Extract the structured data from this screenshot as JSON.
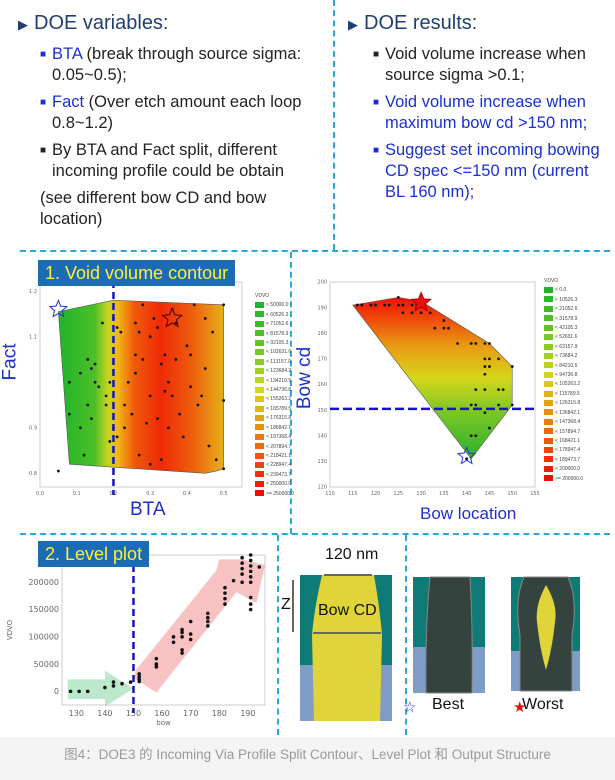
{
  "left_panel": {
    "heading": "DOE variables:",
    "bullets": [
      {
        "key": "BTA",
        "text": " (break through source sigma: 0.05~0.5);"
      },
      {
        "key": "Fact",
        "text": " (Over etch amount each loop 0.8~1.2)"
      },
      {
        "key": "",
        "text": "By BTA and Fact split, different incoming profile could be obtain"
      }
    ],
    "note": "(see different bow CD and bow location)"
  },
  "right_panel": {
    "heading": "DOE results:",
    "bullets": [
      "Void volume increase when source sigma >0.1;",
      "Void volume increase when maximum bow cd >150 nm;",
      "Suggest set incoming bowing CD spec <=150 nm (current BL 160 nm);"
    ]
  },
  "structure": {
    "width_label": "120 nm",
    "z_label": "Z",
    "bow_cd_label": "Bow CD",
    "best_label": "Best",
    "worst_label": "Worst"
  },
  "caption": "图4：DOE3 的 Incoming Via Profile Split Contour、Level Plot 和 Output Structure",
  "colors": {
    "accent_blue": "#1a2fd0",
    "title_box": "#1c6cb4",
    "title_text": "#ffef3a",
    "divider": "#29a8e0"
  },
  "chart_data": [
    {
      "type": "contour",
      "title": "1. Void volume contour",
      "xlabel": "BTA",
      "ylabel": "Fact",
      "xlim": [
        0,
        0.55
      ],
      "ylim": [
        0.77,
        1.22
      ],
      "xticks": [
        "0.0",
        "0.1",
        "0.2",
        "0.3",
        "0.4",
        "0.5"
      ],
      "yticks": [
        "0.8",
        "0.9",
        "1.1",
        "1.2"
      ],
      "threshold": {
        "axis": "x",
        "value": 0.2
      },
      "best": [
        0.05,
        1.16
      ],
      "worst": [
        0.36,
        1.14
      ],
      "region": [
        [
          0.05,
          1.155
        ],
        [
          0.2,
          1.18
        ],
        [
          0.5,
          1.17
        ],
        [
          0.5,
          0.81
        ],
        [
          0.48,
          0.805
        ],
        [
          0.45,
          0.8
        ],
        [
          0.08,
          0.82
        ]
      ],
      "legend_title": "VDVO",
      "legend": [
        "< 50000.0",
        "< 60526.3",
        "< 71052.6",
        "< 81578.9",
        "< 92105.3",
        "< 102631.6",
        "< 113157.9",
        "< 123684.2",
        "< 134210.5",
        "< 144736.8",
        "< 155263.2",
        "< 165789.5",
        "< 176315.8",
        "< 186842.1",
        "< 197368.4",
        "< 207894.7",
        "< 218421.1",
        "< 228947.4",
        "< 239473.7",
        "< 250000.0",
        ">= 250000.0"
      ],
      "points": [
        [
          0.05,
          0.805
        ],
        [
          0.08,
          1.0
        ],
        [
          0.08,
          0.93
        ],
        [
          0.11,
          0.9
        ],
        [
          0.11,
          1.02
        ],
        [
          0.12,
          0.84
        ],
        [
          0.13,
          1.05
        ],
        [
          0.13,
          0.95
        ],
        [
          0.14,
          1.03
        ],
        [
          0.14,
          0.92
        ],
        [
          0.15,
          1.0
        ],
        [
          0.15,
          1.04
        ],
        [
          0.16,
          0.99
        ],
        [
          0.17,
          1.13
        ],
        [
          0.18,
          0.97
        ],
        [
          0.18,
          0.95
        ],
        [
          0.19,
          1.0
        ],
        [
          0.19,
          0.87
        ],
        [
          0.2,
          0.9
        ],
        [
          0.2,
          1.14
        ],
        [
          0.21,
          1.12
        ],
        [
          0.21,
          0.88
        ],
        [
          0.22,
          1.11
        ],
        [
          0.23,
          0.95
        ],
        [
          0.23,
          0.9
        ],
        [
          0.24,
          1.0
        ],
        [
          0.25,
          0.93
        ],
        [
          0.26,
          1.13
        ],
        [
          0.26,
          1.06
        ],
        [
          0.26,
          1.02
        ],
        [
          0.27,
          1.11
        ],
        [
          0.27,
          0.84
        ],
        [
          0.28,
          1.17
        ],
        [
          0.28,
          1.05
        ],
        [
          0.29,
          0.91
        ],
        [
          0.3,
          1.1
        ],
        [
          0.3,
          0.97
        ],
        [
          0.3,
          0.82
        ],
        [
          0.31,
          1.14
        ],
        [
          0.32,
          1.12
        ],
        [
          0.32,
          0.92
        ],
        [
          0.33,
          1.04
        ],
        [
          0.33,
          0.83
        ],
        [
          0.34,
          0.98
        ],
        [
          0.34,
          1.06
        ],
        [
          0.35,
          1.0
        ],
        [
          0.35,
          0.9
        ],
        [
          0.36,
          1.16
        ],
        [
          0.36,
          0.97
        ],
        [
          0.37,
          1.13
        ],
        [
          0.37,
          1.05
        ],
        [
          0.38,
          0.93
        ],
        [
          0.39,
          0.88
        ],
        [
          0.4,
          1.08
        ],
        [
          0.41,
          1.06
        ],
        [
          0.41,
          0.99
        ],
        [
          0.42,
          1.17
        ],
        [
          0.43,
          0.95
        ],
        [
          0.44,
          0.97
        ],
        [
          0.45,
          1.14
        ],
        [
          0.45,
          1.03
        ],
        [
          0.46,
          0.86
        ],
        [
          0.47,
          1.11
        ],
        [
          0.48,
          0.83
        ],
        [
          0.5,
          0.96
        ],
        [
          0.5,
          1.17
        ],
        [
          0.5,
          0.81
        ]
      ]
    },
    {
      "type": "contour",
      "title": "",
      "xlabel": "Bow location",
      "ylabel": "Bow cd",
      "xlim": [
        110,
        155
      ],
      "ylim": [
        120,
        200
      ],
      "xticks": [
        "110",
        "115",
        "120",
        "125",
        "130",
        "135",
        "140",
        "145",
        "150",
        "155"
      ],
      "yticks": [
        "120",
        "130",
        "140",
        "150",
        "160",
        "170",
        "180",
        "190",
        "200"
      ],
      "threshold": {
        "axis": "y",
        "value": 150.5
      },
      "best": [
        140,
        132
      ],
      "worst": [
        130,
        192
      ],
      "region": [
        [
          115,
          191
        ],
        [
          125,
          194
        ],
        [
          130,
          192.5
        ],
        [
          145,
          176
        ],
        [
          150,
          167
        ],
        [
          150,
          152
        ],
        [
          141,
          131
        ]
      ],
      "legend_title": "VDVO",
      "legend": [
        "< 0.0",
        "< 10526.3",
        "< 21052.6",
        "< 31578.9",
        "< 42105.3",
        "< 52631.6",
        "< 63157.9",
        "< 73684.2",
        "< 84210.5",
        "< 94736.8",
        "< 105263.2",
        "< 115789.5",
        "< 126315.8",
        "< 136842.1",
        "< 147368.4",
        "< 157894.7",
        "< 168421.1",
        "< 178947.4",
        "< 189473.7",
        "< 200000.0",
        ">= 200000.0"
      ],
      "points": [
        [
          125,
          194
        ],
        [
          116,
          191
        ],
        [
          117,
          191
        ],
        [
          119,
          191
        ],
        [
          120,
          191
        ],
        [
          122,
          191
        ],
        [
          123,
          191
        ],
        [
          125,
          191
        ],
        [
          126,
          191
        ],
        [
          128,
          191
        ],
        [
          129,
          191
        ],
        [
          130,
          191
        ],
        [
          126,
          188
        ],
        [
          128,
          188
        ],
        [
          130,
          188
        ],
        [
          132,
          188
        ],
        [
          135,
          185
        ],
        [
          133,
          182
        ],
        [
          135,
          182
        ],
        [
          136,
          182
        ],
        [
          138,
          176
        ],
        [
          141,
          176
        ],
        [
          142,
          176
        ],
        [
          144,
          176
        ],
        [
          145,
          176
        ],
        [
          144,
          170
        ],
        [
          145,
          170
        ],
        [
          147,
          170
        ],
        [
          144,
          167
        ],
        [
          145,
          167
        ],
        [
          144,
          164
        ],
        [
          150,
          167
        ],
        [
          142,
          158
        ],
        [
          144,
          158
        ],
        [
          147,
          158
        ],
        [
          148,
          158
        ],
        [
          141,
          152
        ],
        [
          142,
          152
        ],
        [
          147,
          152
        ],
        [
          150,
          152
        ],
        [
          144,
          149
        ],
        [
          145,
          143
        ],
        [
          141,
          140
        ],
        [
          142,
          140
        ],
        [
          140,
          131
        ]
      ]
    },
    {
      "type": "scatter",
      "title": "2. Level plot",
      "xlabel": "bow",
      "ylabel": "VDVO",
      "xlim": [
        125,
        196
      ],
      "ylim": [
        -25000,
        250000
      ],
      "xticks": [
        "130",
        "140",
        "150",
        "160",
        "170",
        "180",
        "190"
      ],
      "yticks": [
        "0",
        "50000",
        "100000",
        "150000",
        "200000"
      ],
      "threshold": {
        "axis": "x",
        "value": 150
      },
      "points": [
        [
          128,
          0
        ],
        [
          131,
          0
        ],
        [
          134,
          0
        ],
        [
          140,
          7000
        ],
        [
          143,
          10000
        ],
        [
          143,
          17000
        ],
        [
          146,
          14000
        ],
        [
          149,
          17000
        ],
        [
          152,
          18000
        ],
        [
          152,
          22000
        ],
        [
          152,
          27000
        ],
        [
          152,
          32000
        ],
        [
          158,
          45000
        ],
        [
          158,
          50000
        ],
        [
          158,
          60000
        ],
        [
          164,
          90000
        ],
        [
          164,
          100000
        ],
        [
          167,
          70000
        ],
        [
          167,
          76000
        ],
        [
          167,
          100000
        ],
        [
          167,
          108000
        ],
        [
          167,
          113000
        ],
        [
          170,
          95000
        ],
        [
          170,
          105000
        ],
        [
          170,
          128000
        ],
        [
          176,
          120000
        ],
        [
          176,
          128000
        ],
        [
          176,
          135000
        ],
        [
          176,
          143000
        ],
        [
          182,
          160000
        ],
        [
          182,
          170000
        ],
        [
          182,
          180000
        ],
        [
          182,
          190000
        ],
        [
          185,
          203000
        ],
        [
          188,
          200000
        ],
        [
          188,
          215000
        ],
        [
          188,
          225000
        ],
        [
          188,
          235000
        ],
        [
          188,
          245000
        ],
        [
          191,
          150000
        ],
        [
          191,
          160000
        ],
        [
          191,
          172000
        ],
        [
          191,
          200000
        ],
        [
          191,
          210000
        ],
        [
          191,
          220000
        ],
        [
          191,
          230000
        ],
        [
          191,
          240000
        ],
        [
          191,
          250000
        ],
        [
          194,
          228000
        ]
      ]
    }
  ]
}
